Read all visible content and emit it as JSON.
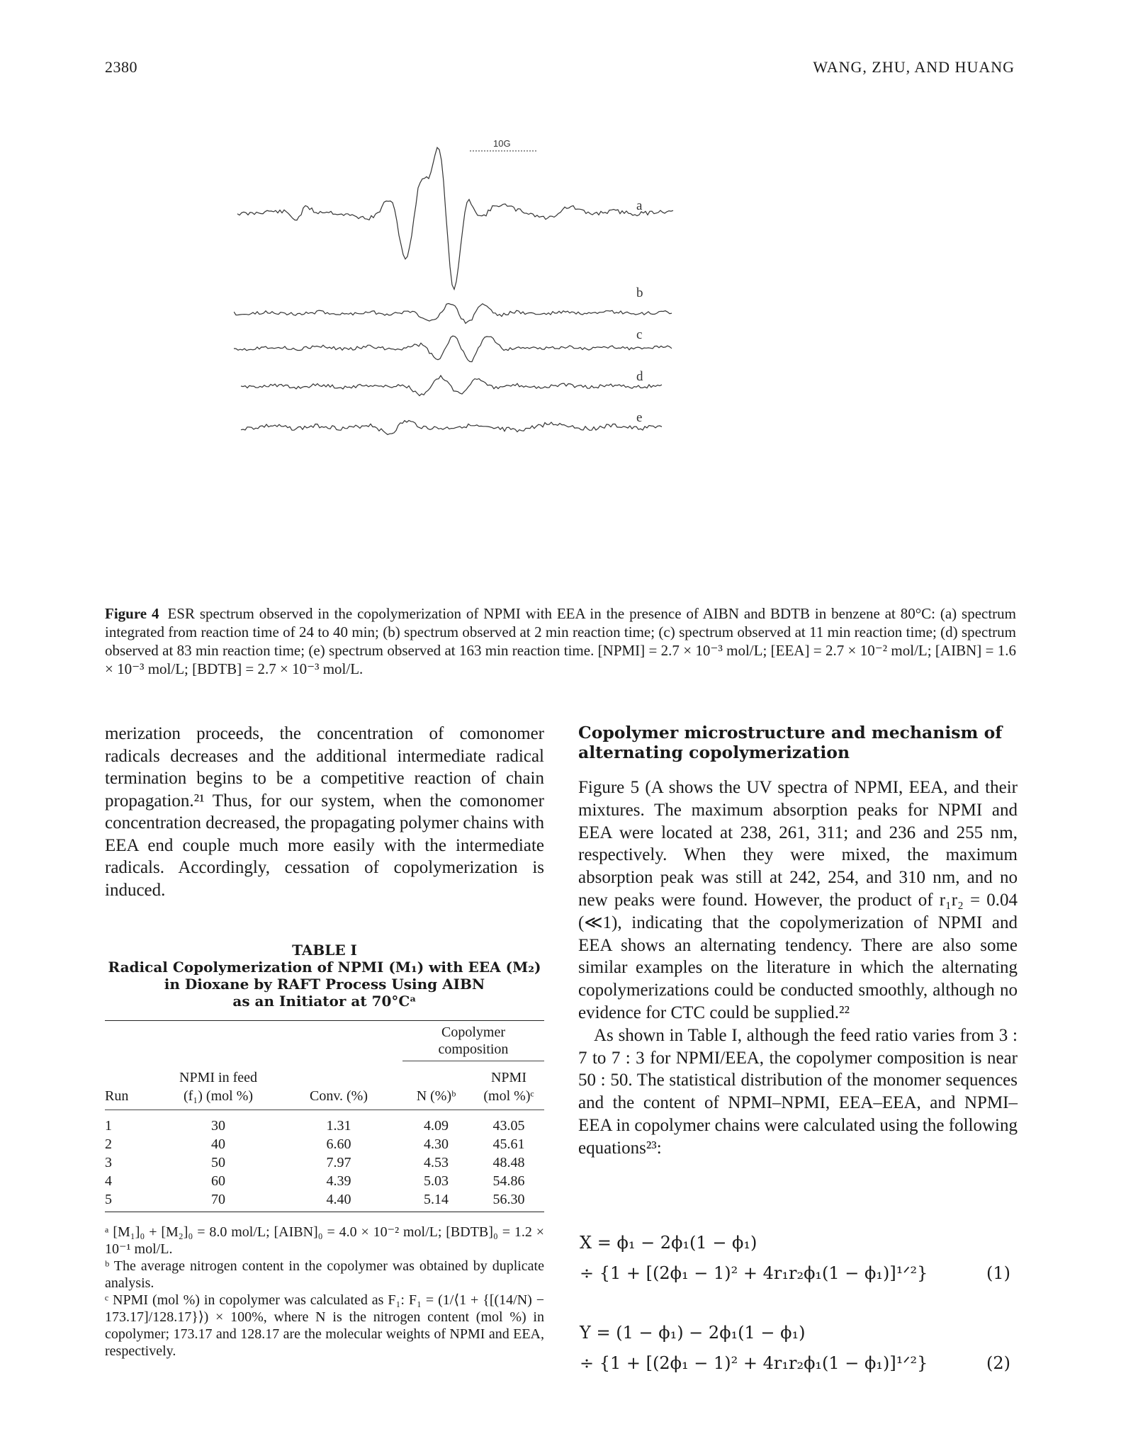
{
  "header": {
    "page_number": "2380",
    "running_title": "WANG, ZHU, AND HUANG"
  },
  "figure": {
    "scale_label": "10G",
    "trace_labels": [
      "a",
      "b",
      "c",
      "d",
      "e"
    ],
    "caption_label": "Figure 4",
    "caption_text": "ESR spectrum observed in the copolymerization of NPMI with EEA in the presence of AIBN and BDTB in benzene at 80°C: (a) spectrum integrated from reaction time of 24 to 40 min; (b) spectrum observed at 2 min reaction time; (c) spectrum observed at 11 min reaction time; (d) spectrum observed at 83 min reaction time; (e) spectrum observed at 163 min reaction time. [NPMI] = 2.7 × 10⁻³ mol/L; [EEA] = 2.7 × 10⁻² mol/L; [AIBN] = 1.6 × 10⁻³ mol/L; [BDTB] = 2.7 × 10⁻³ mol/L."
  },
  "left_column": {
    "paragraph": "merization proceeds, the concentration of comonomer radicals decreases and the additional intermediate radical termination begins to be a competitive reaction of chain propagation.²¹ Thus, for our system, when the comonomer concentration decreased, the propagating polymer chains with EEA end couple much more easily with the intermediate radicals. Accordingly, cessation of copolymerization is induced."
  },
  "table": {
    "label": "TABLE I",
    "title_lines": [
      "Radical Copolymerization of NPMI (M₁) with EEA (M₂)",
      "in Dioxane by RAFT Process Using AIBN",
      "as an Initiator at 70°Cᵃ"
    ],
    "group_header_line1": "Copolymer",
    "group_header_line2": "composition",
    "col_run": "Run",
    "col_feed_line1": "NPMI in feed",
    "col_feed_line2": "(f₁) (mol %)",
    "col_conv": "Conv. (%)",
    "col_n": "N (%)ᵇ",
    "col_npmi_line1": "NPMI",
    "col_npmi_line2": "(mol %)ᶜ",
    "rows": [
      [
        "1",
        "30",
        "1.31",
        "4.09",
        "43.05"
      ],
      [
        "2",
        "40",
        "6.60",
        "4.30",
        "45.61"
      ],
      [
        "3",
        "50",
        "7.97",
        "4.53",
        "48.48"
      ],
      [
        "4",
        "60",
        "4.39",
        "5.03",
        "54.86"
      ],
      [
        "5",
        "70",
        "4.40",
        "5.14",
        "56.30"
      ]
    ],
    "notes": [
      "ᵃ [M₁]₀ + [M₂]₀ = 8.0 mol/L; [AIBN]₀ = 4.0 × 10⁻² mol/L; [BDTB]₀ = 1.2 × 10⁻¹ mol/L.",
      "ᵇ The average nitrogen content in the copolymer was obtained by duplicate analysis.",
      "ᶜ NPMI (mol %) in copolymer was calculated as F₁: F₁ = (1/⟨1 + {[(14/N) − 173.17]/128.17}⟩) × 100%, where N is the nitrogen content (mol %) in copolymer; 173.17 and 128.17 are the molecular weights of NPMI and EEA, respectively."
    ]
  },
  "right_column": {
    "section_title": "Copolymer microstructure and mechanism of alternating copolymerization",
    "paragraph1": "Figure 5 (A shows the UV spectra of NPMI, EEA, and their mixtures. The maximum absorption peaks for NPMI and EEA were located at 238, 261, 311; and 236 and 255 nm, respectively. When they were mixed, the maximum absorption peak was still at 242, 254, and 310 nm, and no new peaks were found. However, the product of r₁r₂ = 0.04 (≪1), indicating that the copolymerization of NPMI and EEA shows an alternating tendency. There are also some similar examples on the literature in which the alternating copolymerizations could be conducted smoothly, although no evidence for CTC could be supplied.²²",
    "paragraph2": "As shown in Table I, although the feed ratio varies from 3 : 7 to 7 : 3 for NPMI/EEA, the copolymer composition is near 50 : 50. The statistical distribution of the monomer sequences and the content of NPMI–NPMI, EEA–EEA, and NPMI–EEA in copolymer chains were calculated using the following equations²³:"
  },
  "equations": {
    "eq1_line1": "X = ϕ₁ − 2ϕ₁(1 − ϕ₁)",
    "eq1_line2": "÷ {1 + [(2ϕ₁ − 1)² + 4r₁r₂ϕ₁(1 − ϕ₁)]¹ᐟ²}",
    "eq1_number": "(1)",
    "eq2_line1": "Y = (1 − ϕ₁) − 2ϕ₁(1 − ϕ₁)",
    "eq2_line2": "÷ {1 + [(2ϕ₁ − 1)² + 4r₁r₂ϕ₁(1 − ϕ₁)]¹ᐟ²}",
    "eq2_number": "(2)"
  }
}
